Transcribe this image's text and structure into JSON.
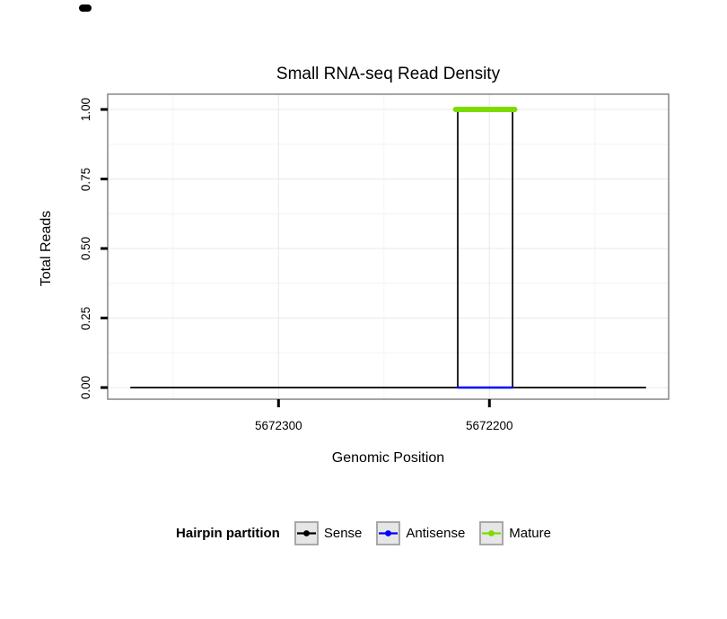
{
  "chart_data": {
    "type": "line",
    "title": "Small RNA-seq Read Density",
    "xlabel": "Genomic Position",
    "ylabel": "Total Reads",
    "x_axis": {
      "reversed": true,
      "range": [
        5672381,
        5672115
      ],
      "ticks": [
        5672300,
        5672200
      ],
      "tick_labels": [
        "5672300",
        "5672200"
      ],
      "minor_ticks": [
        5672350,
        5672250,
        5672150
      ]
    },
    "y_axis": {
      "range": [
        0,
        1
      ],
      "ticks": [
        0,
        0.25,
        0.5,
        0.75,
        1
      ],
      "tick_labels": [
        "0.00",
        "0.25",
        "0.50",
        "0.75",
        "1.00"
      ],
      "minor_ticks": [
        0.125,
        0.375,
        0.625,
        0.875
      ]
    },
    "panel": {
      "background": "#FFFFFF",
      "border_color": "#858585",
      "grid_major_color": "#E8E8E8",
      "grid_minor_color": "#F4F4F4"
    },
    "series": [
      {
        "name": "Sense",
        "color": "#000000",
        "stroke_width": 1.7,
        "points": [
          [
            5672370,
            0
          ],
          [
            5672215,
            0
          ],
          [
            5672215,
            1
          ],
          [
            5672189,
            1
          ],
          [
            5672189,
            0
          ],
          [
            5672126,
            0
          ]
        ]
      },
      {
        "name": "Antisense",
        "color": "#0000FF",
        "stroke_width": 2.4,
        "points": [
          [
            5672215,
            0
          ],
          [
            5672189,
            0
          ]
        ]
      },
      {
        "name": "Mature",
        "color": "#7CDB00",
        "stroke_width": 6,
        "points": [
          [
            5672216,
            1
          ],
          [
            5672188,
            1
          ]
        ]
      }
    ],
    "legend": {
      "title": "Hairpin partition",
      "position": "bottom",
      "entries": [
        {
          "label": "Sense",
          "color": "#000000"
        },
        {
          "label": "Antisense",
          "color": "#0000FF"
        },
        {
          "label": "Mature",
          "color": "#7CDB00"
        }
      ],
      "key_fill": "#E6E6E6",
      "key_border": "#A8A8A8"
    }
  }
}
